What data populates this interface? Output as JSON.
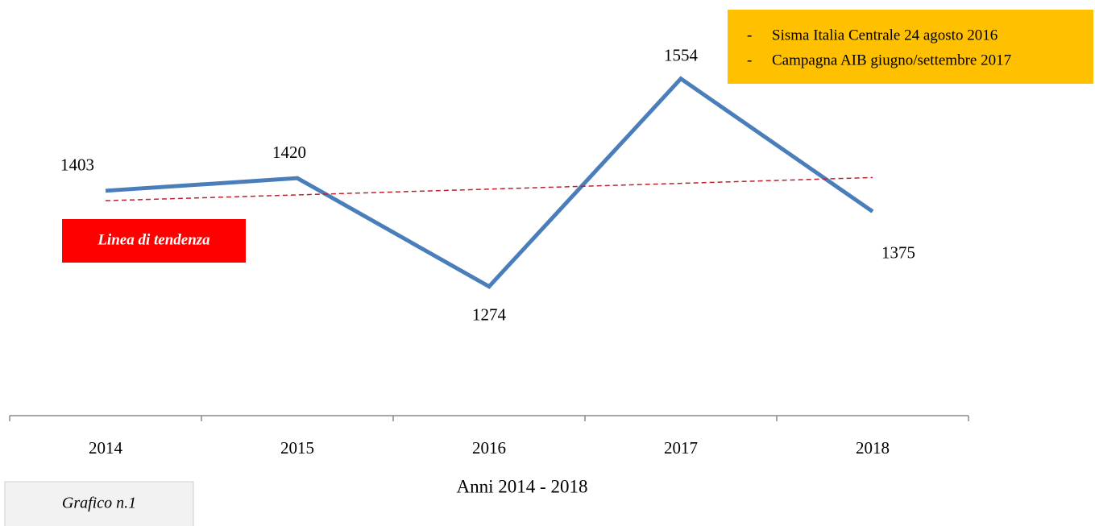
{
  "chart_data": {
    "type": "line",
    "categories": [
      "2014",
      "2015",
      "2016",
      "2017",
      "2018"
    ],
    "series": [
      {
        "color": "#4a7ebb",
        "values": [
          1403,
          1420,
          1274,
          1554,
          1375
        ]
      },
      {
        "name": "Linea di tendenza",
        "color": "#c0202a",
        "dashed": true,
        "values": [
          1389.6,
          1397.4,
          1405.2,
          1413,
          1420.8
        ]
      }
    ],
    "ylim": [
      1100,
      1660
    ],
    "x_label": "Anni 2014 - 2018",
    "annotations": [
      "Sisma  Italia Centrale 24 agosto 2016",
      "Campagna AIB giugno/settembre 2017"
    ],
    "caption": "Grafico n.1"
  }
}
